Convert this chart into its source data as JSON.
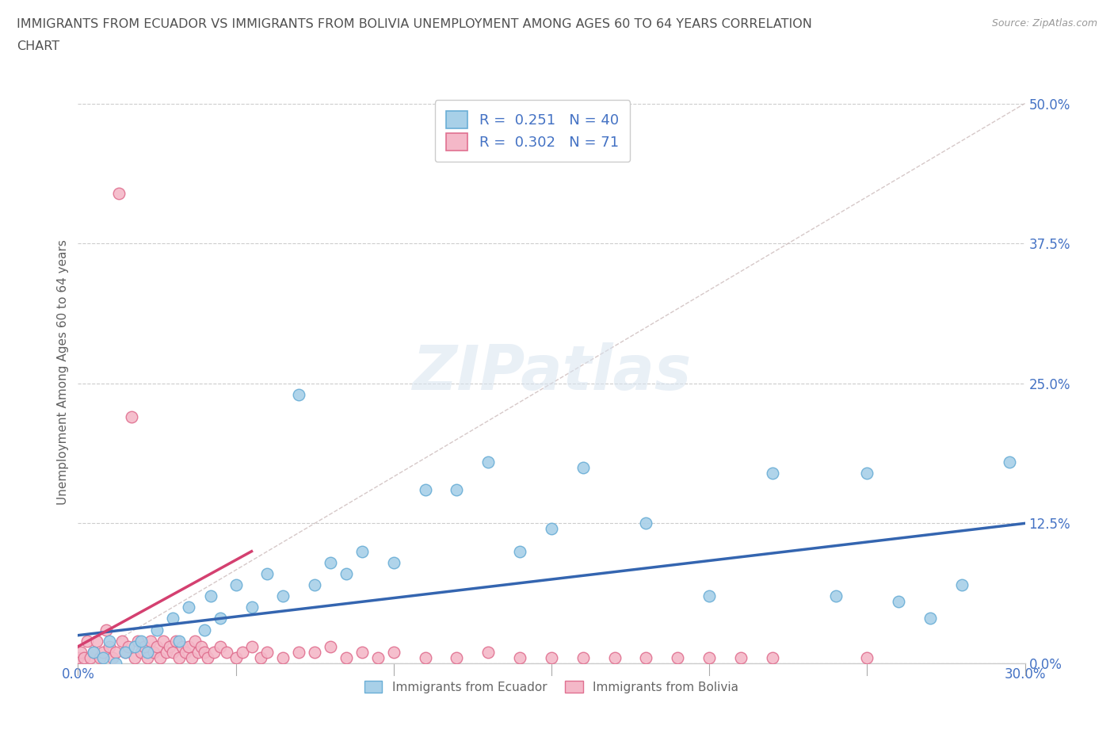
{
  "title_line1": "IMMIGRANTS FROM ECUADOR VS IMMIGRANTS FROM BOLIVIA UNEMPLOYMENT AMONG AGES 60 TO 64 YEARS CORRELATION",
  "title_line2": "CHART",
  "source_text": "Source: ZipAtlas.com",
  "ylabel": "Unemployment Among Ages 60 to 64 years",
  "xlim": [
    0.0,
    0.3
  ],
  "ylim": [
    0.0,
    0.52
  ],
  "yticks": [
    0.0,
    0.125,
    0.25,
    0.375,
    0.5
  ],
  "ytick_labels": [
    "0.0%",
    "12.5%",
    "25.0%",
    "37.5%",
    "50.0%"
  ],
  "xticks": [
    0.0,
    0.05,
    0.1,
    0.15,
    0.2,
    0.25,
    0.3
  ],
  "xtick_labels": [
    "0.0%",
    "",
    "",
    "",
    "",
    "",
    "30.0%"
  ],
  "ecuador_color": "#a8d0e8",
  "ecuador_edge": "#6aaed6",
  "bolivia_color": "#f4b8c8",
  "bolivia_edge": "#e07090",
  "trend_ecuador_color": "#3465b0",
  "trend_bolivia_color": "#d44070",
  "ref_line_color": "#ccbbbb",
  "r_ecuador": 0.251,
  "n_ecuador": 40,
  "r_bolivia": 0.302,
  "n_bolivia": 71,
  "watermark": "ZIPatlas",
  "background_color": "#ffffff",
  "grid_color": "#cccccc",
  "title_color": "#505050",
  "label_color": "#606060",
  "tick_label_color": "#4472c4",
  "legend_text_color": "#4472c4",
  "ecuador_x": [
    0.005,
    0.008,
    0.01,
    0.012,
    0.015,
    0.018,
    0.02,
    0.022,
    0.025,
    0.03,
    0.032,
    0.035,
    0.04,
    0.042,
    0.045,
    0.05,
    0.055,
    0.06,
    0.065,
    0.07,
    0.075,
    0.08,
    0.085,
    0.09,
    0.1,
    0.11,
    0.12,
    0.13,
    0.14,
    0.15,
    0.16,
    0.18,
    0.2,
    0.22,
    0.24,
    0.25,
    0.26,
    0.27,
    0.28,
    0.295
  ],
  "ecuador_y": [
    0.01,
    0.005,
    0.02,
    0.0,
    0.01,
    0.015,
    0.02,
    0.01,
    0.03,
    0.04,
    0.02,
    0.05,
    0.03,
    0.06,
    0.04,
    0.07,
    0.05,
    0.08,
    0.06,
    0.24,
    0.07,
    0.09,
    0.08,
    0.1,
    0.09,
    0.155,
    0.155,
    0.18,
    0.1,
    0.12,
    0.175,
    0.125,
    0.06,
    0.17,
    0.06,
    0.17,
    0.055,
    0.04,
    0.07,
    0.18
  ],
  "bolivia_x": [
    0.0,
    0.001,
    0.002,
    0.003,
    0.004,
    0.005,
    0.006,
    0.007,
    0.008,
    0.009,
    0.01,
    0.011,
    0.012,
    0.013,
    0.014,
    0.015,
    0.016,
    0.017,
    0.018,
    0.019,
    0.02,
    0.021,
    0.022,
    0.023,
    0.024,
    0.025,
    0.026,
    0.027,
    0.028,
    0.029,
    0.03,
    0.031,
    0.032,
    0.033,
    0.034,
    0.035,
    0.036,
    0.037,
    0.038,
    0.039,
    0.04,
    0.041,
    0.043,
    0.045,
    0.047,
    0.05,
    0.052,
    0.055,
    0.058,
    0.06,
    0.065,
    0.07,
    0.075,
    0.08,
    0.085,
    0.09,
    0.095,
    0.1,
    0.11,
    0.12,
    0.13,
    0.14,
    0.15,
    0.16,
    0.17,
    0.18,
    0.19,
    0.2,
    0.21,
    0.22,
    0.25
  ],
  "bolivia_y": [
    0.005,
    0.01,
    0.005,
    0.02,
    0.005,
    0.01,
    0.02,
    0.005,
    0.01,
    0.03,
    0.015,
    0.005,
    0.01,
    0.42,
    0.02,
    0.01,
    0.015,
    0.22,
    0.005,
    0.02,
    0.01,
    0.015,
    0.005,
    0.02,
    0.01,
    0.015,
    0.005,
    0.02,
    0.01,
    0.015,
    0.01,
    0.02,
    0.005,
    0.015,
    0.01,
    0.015,
    0.005,
    0.02,
    0.01,
    0.015,
    0.01,
    0.005,
    0.01,
    0.015,
    0.01,
    0.005,
    0.01,
    0.015,
    0.005,
    0.01,
    0.005,
    0.01,
    0.01,
    0.015,
    0.005,
    0.01,
    0.005,
    0.01,
    0.005,
    0.005,
    0.01,
    0.005,
    0.005,
    0.005,
    0.005,
    0.005,
    0.005,
    0.005,
    0.005,
    0.005,
    0.005
  ],
  "ecuador_trend_x0": 0.0,
  "ecuador_trend_y0": 0.025,
  "ecuador_trend_x1": 0.3,
  "ecuador_trend_y1": 0.125,
  "bolivia_trend_x0": 0.0,
  "bolivia_trend_y0": 0.015,
  "bolivia_trend_x1": 0.055,
  "bolivia_trend_y1": 0.1
}
